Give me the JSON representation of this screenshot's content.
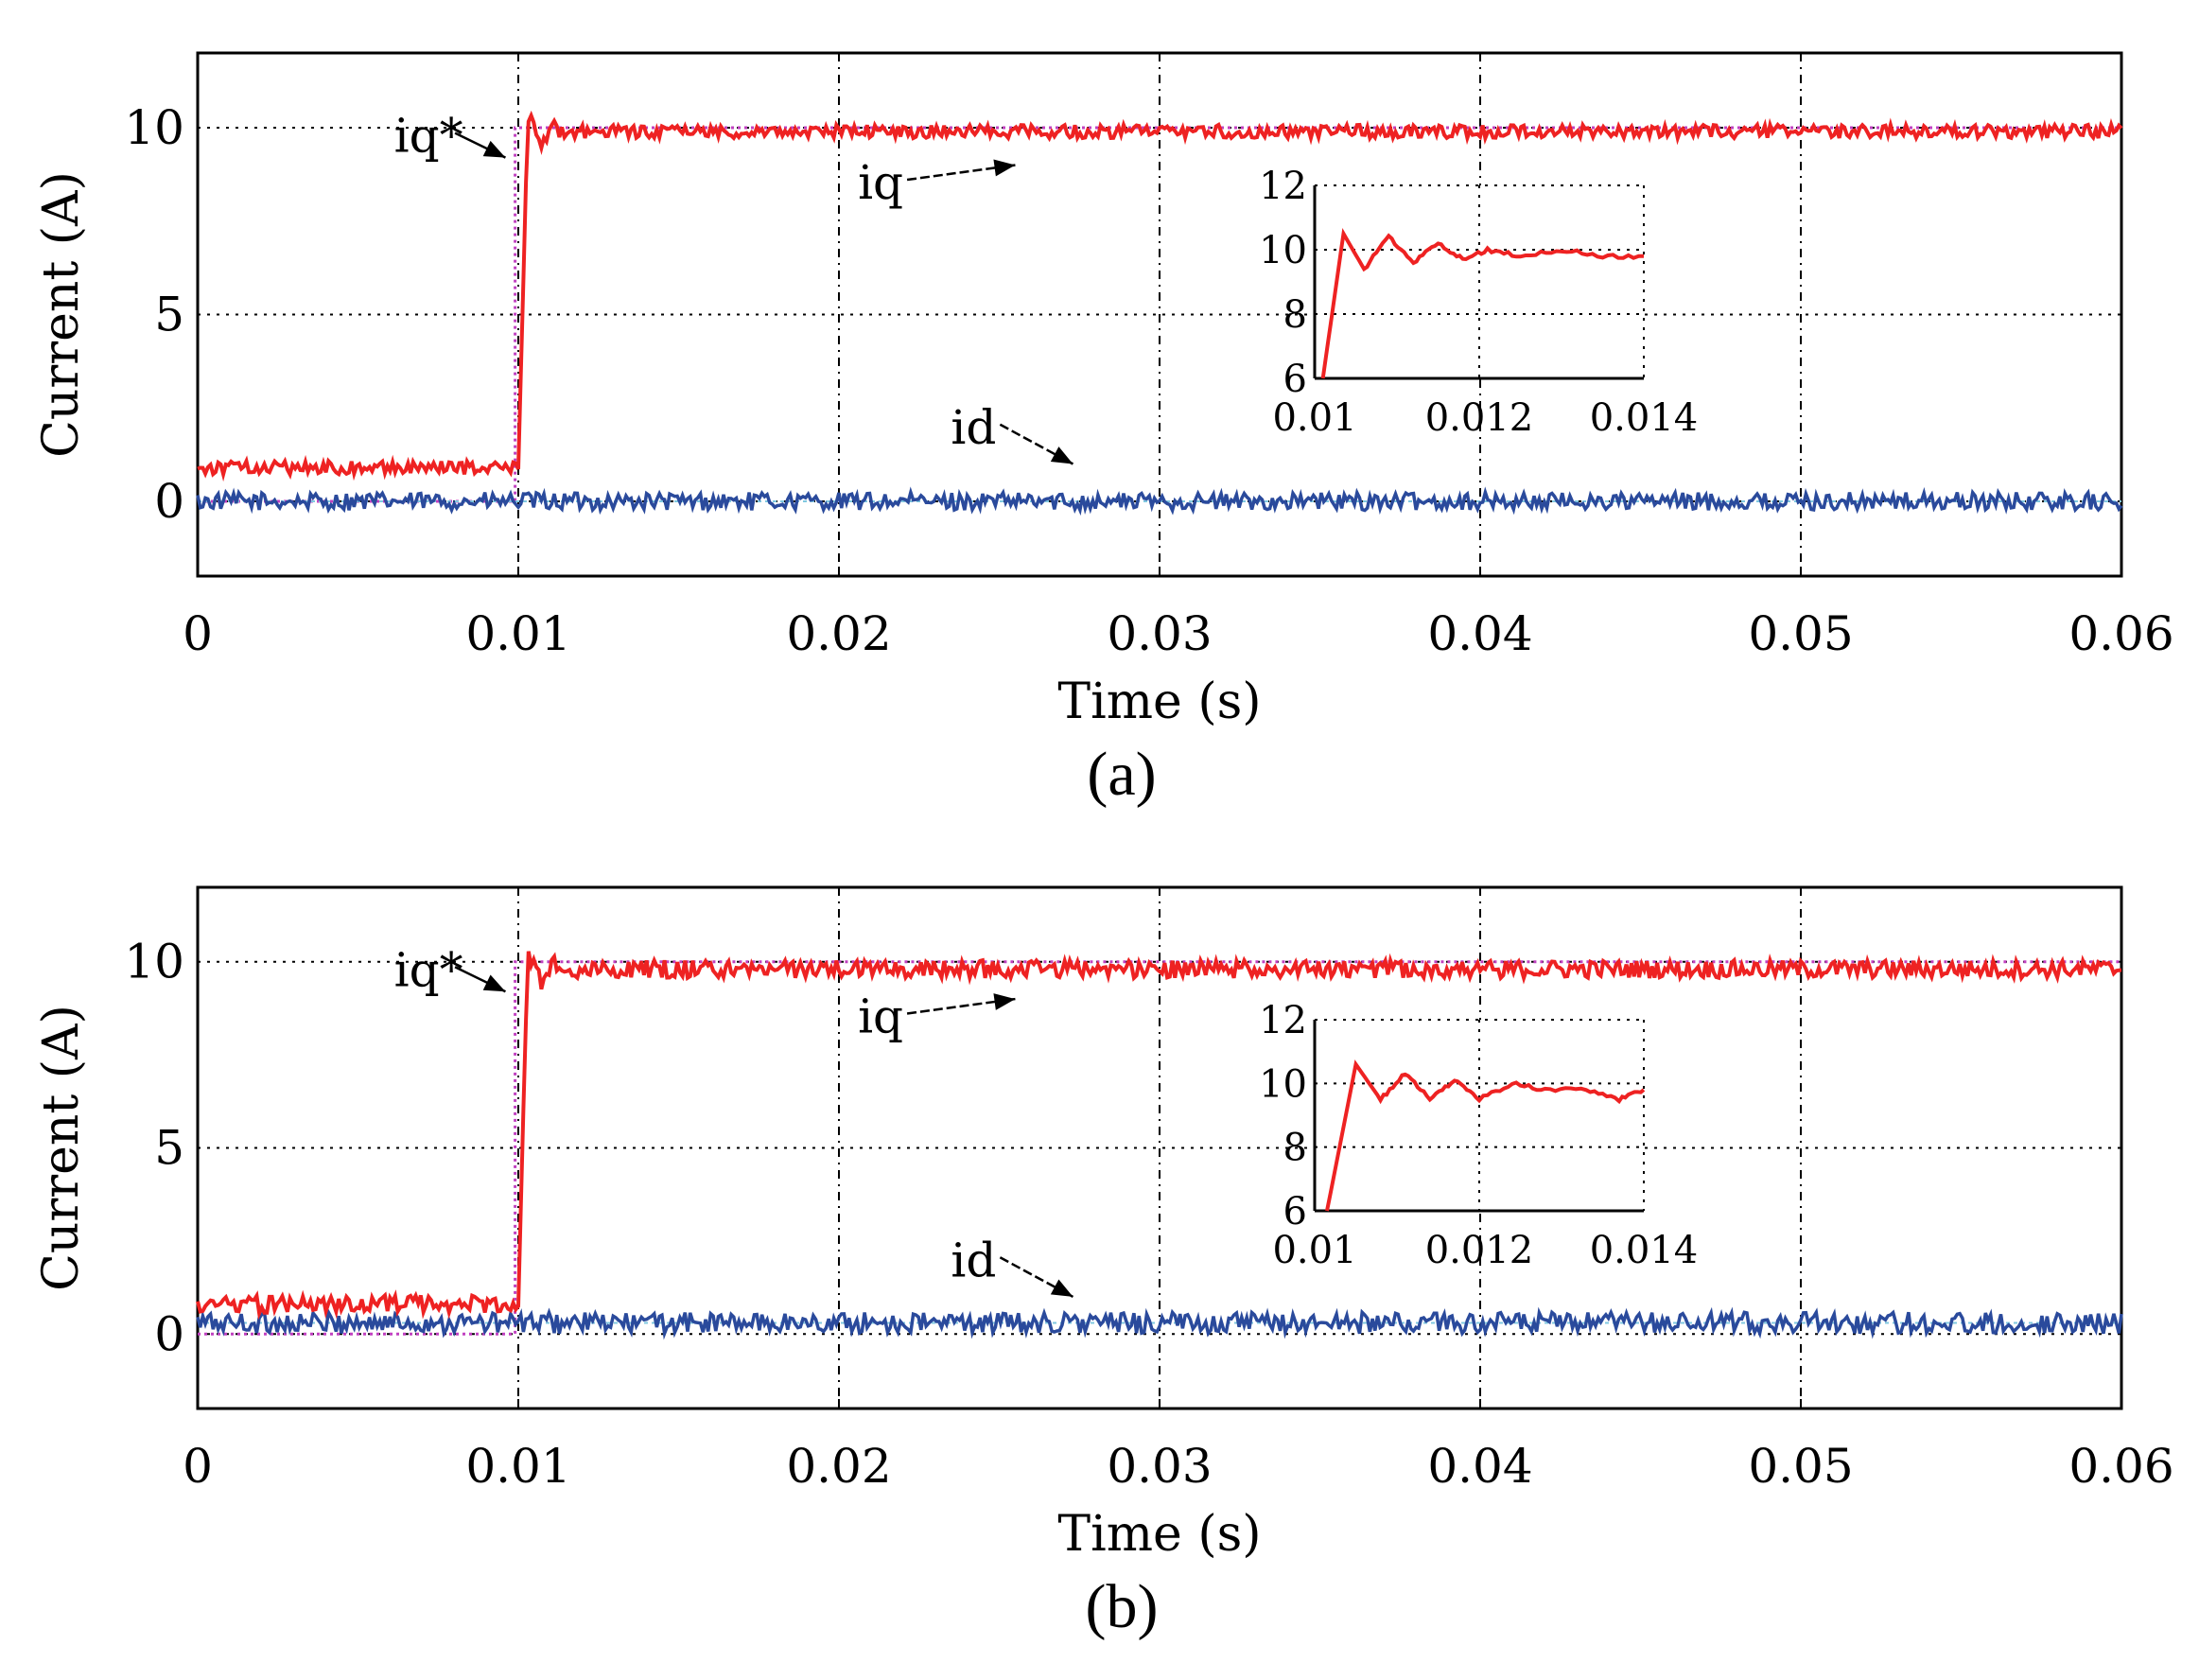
{
  "chart_data": [
    {
      "type": "line",
      "caption": "(a)",
      "xlabel": "Time (s)",
      "ylabel": "Current (A)",
      "xlim": [
        0,
        0.06
      ],
      "ylim": [
        -2,
        12
      ],
      "xticks": [
        "0",
        "0.01",
        "0.02",
        "0.03",
        "0.04",
        "0.05",
        "0.06"
      ],
      "yticks": [
        "0",
        "5",
        "10"
      ],
      "grid": true,
      "series": [
        {
          "name": "iq*",
          "color": "#c040c0",
          "style": "dotted",
          "points": [
            [
              0,
              0
            ],
            [
              0.0099,
              0
            ],
            [
              0.0099,
              10
            ],
            [
              0.06,
              10
            ]
          ]
        },
        {
          "name": "iq",
          "color": "#ee2222",
          "before": 0.9,
          "after": 9.9,
          "noise": 0.12,
          "step_time": 0.01
        },
        {
          "name": "id",
          "color": "#2a4a9c",
          "mean": 0.0,
          "noise": 0.15
        }
      ],
      "annotations": [
        {
          "text": "iq*",
          "x": 0.0072,
          "y": 9.35,
          "arrow_to": [
            0.0096,
            9.2
          ]
        },
        {
          "text": "iq",
          "x": 0.0213,
          "y": 8.1,
          "arrow_to": [
            0.0255,
            9.0
          ]
        },
        {
          "text": "id",
          "x": 0.0242,
          "y": 1.55,
          "arrow_to": [
            0.0273,
            1.0
          ]
        }
      ],
      "inset": {
        "xlim": [
          0.01,
          0.014
        ],
        "ylim": [
          6,
          12
        ],
        "xticks": [
          "0.01",
          "0.012",
          "0.014"
        ],
        "yticks": [
          "6",
          "8",
          "10",
          "12"
        ],
        "points": [
          [
            0.0101,
            6.0
          ],
          [
            0.01035,
            10.5
          ],
          [
            0.0106,
            9.4
          ],
          [
            0.0109,
            10.4
          ],
          [
            0.0112,
            9.6
          ],
          [
            0.0115,
            10.2
          ],
          [
            0.0118,
            9.7
          ],
          [
            0.0121,
            10.0
          ],
          [
            0.0125,
            9.8
          ],
          [
            0.013,
            10.0
          ],
          [
            0.0135,
            9.8
          ],
          [
            0.014,
            9.8
          ]
        ]
      }
    },
    {
      "type": "line",
      "caption": "(b)",
      "xlabel": "Time (s)",
      "ylabel": "Current (A)",
      "xlim": [
        0,
        0.06
      ],
      "ylim": [
        -2,
        12
      ],
      "xticks": [
        "0",
        "0.01",
        "0.02",
        "0.03",
        "0.04",
        "0.05",
        "0.06"
      ],
      "yticks": [
        "0",
        "5",
        "10"
      ],
      "grid": true,
      "series": [
        {
          "name": "iq*",
          "color": "#c040c0",
          "style": "dotted",
          "points": [
            [
              0,
              0
            ],
            [
              0.0099,
              0
            ],
            [
              0.0099,
              10
            ],
            [
              0.06,
              10
            ]
          ]
        },
        {
          "name": "iq",
          "color": "#ee2222",
          "before": 0.8,
          "after": 9.8,
          "noise": 0.16,
          "step_time": 0.01
        },
        {
          "name": "id",
          "color": "#2a4a9c",
          "mean": 0.3,
          "noise": 0.18
        }
      ],
      "annotations": [
        {
          "text": "iq*",
          "x": 0.0072,
          "y": 9.35,
          "arrow_to": [
            0.0096,
            9.2
          ]
        },
        {
          "text": "iq",
          "x": 0.0213,
          "y": 8.1,
          "arrow_to": [
            0.0255,
            9.0
          ]
        },
        {
          "text": "id",
          "x": 0.0242,
          "y": 1.55,
          "arrow_to": [
            0.0273,
            1.0
          ]
        }
      ],
      "inset": {
        "xlim": [
          0.01,
          0.014
        ],
        "ylim": [
          6,
          12
        ],
        "xticks": [
          "0.01",
          "0.012",
          "0.014"
        ],
        "yticks": [
          "6",
          "8",
          "10",
          "12"
        ],
        "points": [
          [
            0.01015,
            6.0
          ],
          [
            0.0105,
            10.6
          ],
          [
            0.0108,
            9.5
          ],
          [
            0.0111,
            10.3
          ],
          [
            0.0114,
            9.5
          ],
          [
            0.0117,
            10.1
          ],
          [
            0.012,
            9.5
          ],
          [
            0.0124,
            10.0
          ],
          [
            0.0128,
            9.8
          ],
          [
            0.0133,
            9.8
          ],
          [
            0.0137,
            9.5
          ],
          [
            0.014,
            9.8
          ]
        ]
      }
    }
  ]
}
